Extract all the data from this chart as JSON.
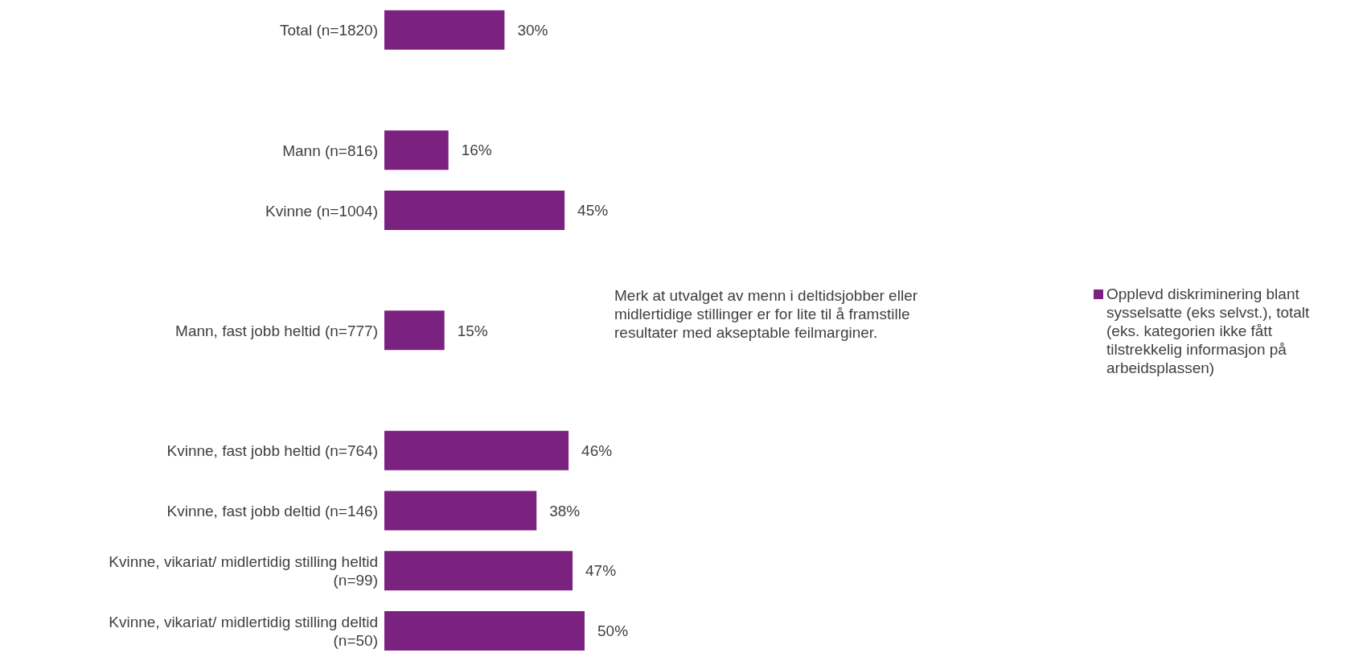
{
  "chart_data": {
    "type": "bar",
    "orientation": "horizontal",
    "categories": [
      "Total (n=1820)",
      null,
      "Mann (n=816)",
      "Kvinne (n=1004)",
      null,
      "Mann, fast jobb heltid (n=777)",
      null,
      "Kvinne, fast jobb heltid (n=764)",
      "Kvinne, fast jobb deltid (n=146)",
      "Kvinne, vikariat/ midlertidig stilling heltid (n=99)",
      "Kvinne, vikariat/ midlertidig stilling deltid (n=50)"
    ],
    "series": [
      {
        "name": "Opplevd diskriminering blant sysselsatte (eks selvst.), totalt (eks. kategorien ikke fått tilstrekkelig informasjon på arbeidsplassen)",
        "color": "#7b2180",
        "values": [
          30,
          null,
          16,
          45,
          null,
          15,
          null,
          46,
          38,
          47,
          50
        ],
        "value_labels": [
          "30%",
          null,
          "16%",
          "45%",
          null,
          "15%",
          null,
          "46%",
          "38%",
          "47%",
          "50%"
        ]
      }
    ],
    "annotations": [
      "Merk at utvalget av menn i deltidsjobber eller midlertidige stillinger er for lite til å framstille resultater med akseptable feilmarginer."
    ],
    "tick_labels": "y",
    "legend": "right"
  }
}
